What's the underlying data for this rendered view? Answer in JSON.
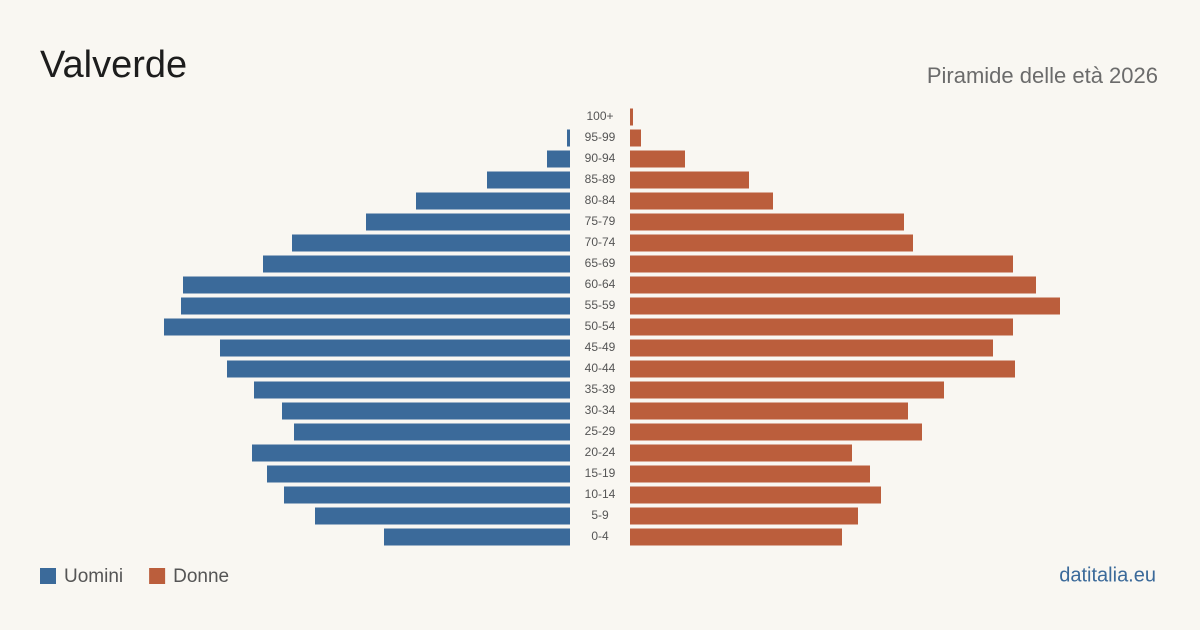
{
  "chart_data": {
    "type": "pyramid",
    "title": "Valverde",
    "subtitle": "Piramide delle età 2026",
    "source": "datitalia.eu",
    "categories": [
      "100+",
      "95-99",
      "90-94",
      "85-89",
      "80-84",
      "75-79",
      "70-74",
      "65-69",
      "60-64",
      "55-59",
      "50-54",
      "45-49",
      "40-44",
      "35-39",
      "30-34",
      "25-29",
      "20-24",
      "15-19",
      "10-14",
      "5-9",
      "0-4"
    ],
    "series": [
      {
        "name": "Uomini",
        "color": "#3b6a9a",
        "values": [
          0,
          3,
          23,
          83,
          154,
          204,
          278,
          307,
          387,
          389,
          406,
          350,
          343,
          316,
          288,
          276,
          318,
          303,
          286,
          255,
          186
        ]
      },
      {
        "name": "Donne",
        "color": "#bb5e3c",
        "values": [
          3,
          11,
          55,
          119,
          143,
          274,
          283,
          383,
          406,
          430,
          383,
          363,
          385,
          314,
          278,
          292,
          222,
          240,
          251,
          228,
          212
        ]
      }
    ]
  }
}
